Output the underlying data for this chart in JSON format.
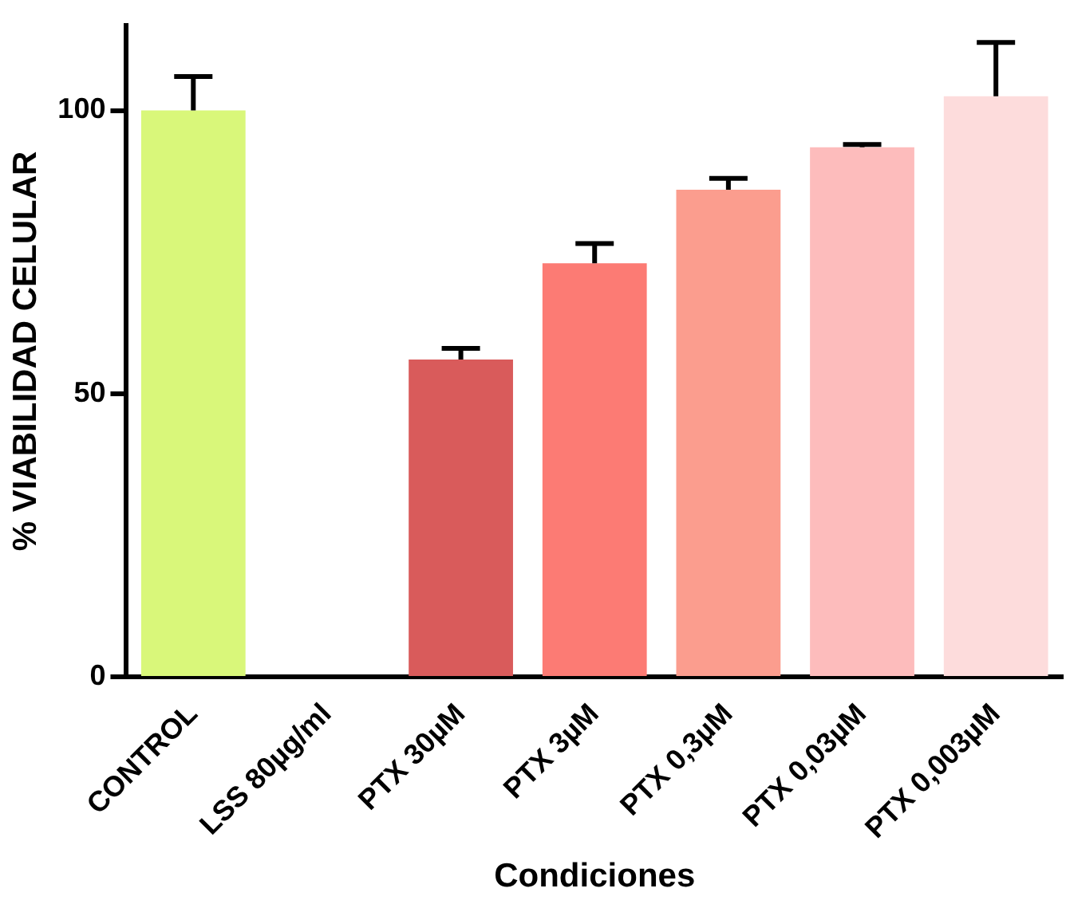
{
  "chart_data": {
    "type": "bar",
    "xlabel": "Condiciones",
    "ylabel": "% VIABILIDAD CELULAR",
    "categories": [
      "CONTROL",
      "LSS 80µg/ml",
      "PTX 30µM",
      "PTX 3µM",
      "PTX 0,3µM",
      "PTX 0,03µM",
      "PTX 0,003µM"
    ],
    "values": [
      100,
      null,
      56,
      73,
      86,
      93.5,
      102.5
    ],
    "errors": [
      [
        100,
        106
      ],
      null,
      [
        56,
        58
      ],
      [
        73,
        76.5
      ],
      [
        86,
        88
      ],
      [
        93.5,
        94
      ],
      [
        102.5,
        112
      ]
    ],
    "colors": [
      "#d9f77a",
      "#ffffff",
      "#d95b5b",
      "#fc7b74",
      "#fb9d8e",
      "#fdbcbc",
      "#fddcdc"
    ],
    "ylim": [
      0,
      115
    ],
    "yticks": [
      0,
      50,
      100
    ],
    "grid": false,
    "legend": false
  }
}
